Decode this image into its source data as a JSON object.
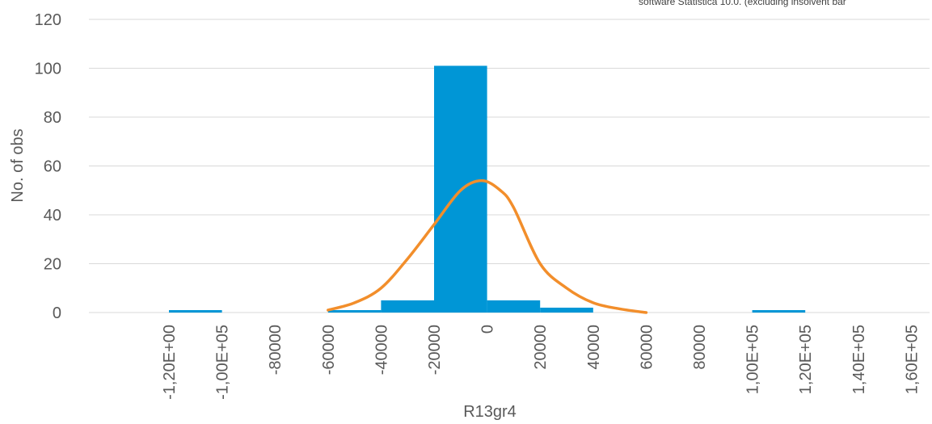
{
  "note": "software Statistica 10.0. (excluding insolvent bar",
  "chart_data": {
    "type": "bar",
    "xlabel": "R13gr4",
    "ylabel": "No. of obs",
    "ylim": [
      0,
      120
    ],
    "yticks": [
      0,
      20,
      40,
      60,
      80,
      100,
      120
    ],
    "grid": true,
    "categories": [
      "-1,20E+00",
      "-1,00E+05",
      "-80000",
      "-60000",
      "-40000",
      "-20000",
      "0",
      "20000",
      "40000",
      "60000",
      "80000",
      "1,00E+05",
      "1,20E+05",
      "1,40E+05",
      "1,60E+05"
    ],
    "histogram_bars": [
      {
        "from": -120000,
        "to": -100000,
        "value": 1
      },
      {
        "from": -60000,
        "to": -40000,
        "value": 1
      },
      {
        "from": -40000,
        "to": -20000,
        "value": 5
      },
      {
        "from": -20000,
        "to": 0,
        "value": 101
      },
      {
        "from": 0,
        "to": 20000,
        "value": 5
      },
      {
        "from": 20000,
        "to": 40000,
        "value": 2
      },
      {
        "from": 100000,
        "to": 120000,
        "value": 1
      }
    ],
    "bar_color": "#0096d6",
    "curve_color": "#f28e2b",
    "curve": [
      {
        "x": -60000,
        "y": 1
      },
      {
        "x": -50000,
        "y": 4
      },
      {
        "x": -40000,
        "y": 10
      },
      {
        "x": -30000,
        "y": 22
      },
      {
        "x": -20000,
        "y": 36
      },
      {
        "x": -10000,
        "y": 50
      },
      {
        "x": -2000,
        "y": 54
      },
      {
        "x": 5000,
        "y": 50
      },
      {
        "x": 10000,
        "y": 43
      },
      {
        "x": 20000,
        "y": 20
      },
      {
        "x": 30000,
        "y": 10
      },
      {
        "x": 40000,
        "y": 4
      },
      {
        "x": 50000,
        "y": 1.5
      },
      {
        "x": 60000,
        "y": 0
      }
    ]
  }
}
